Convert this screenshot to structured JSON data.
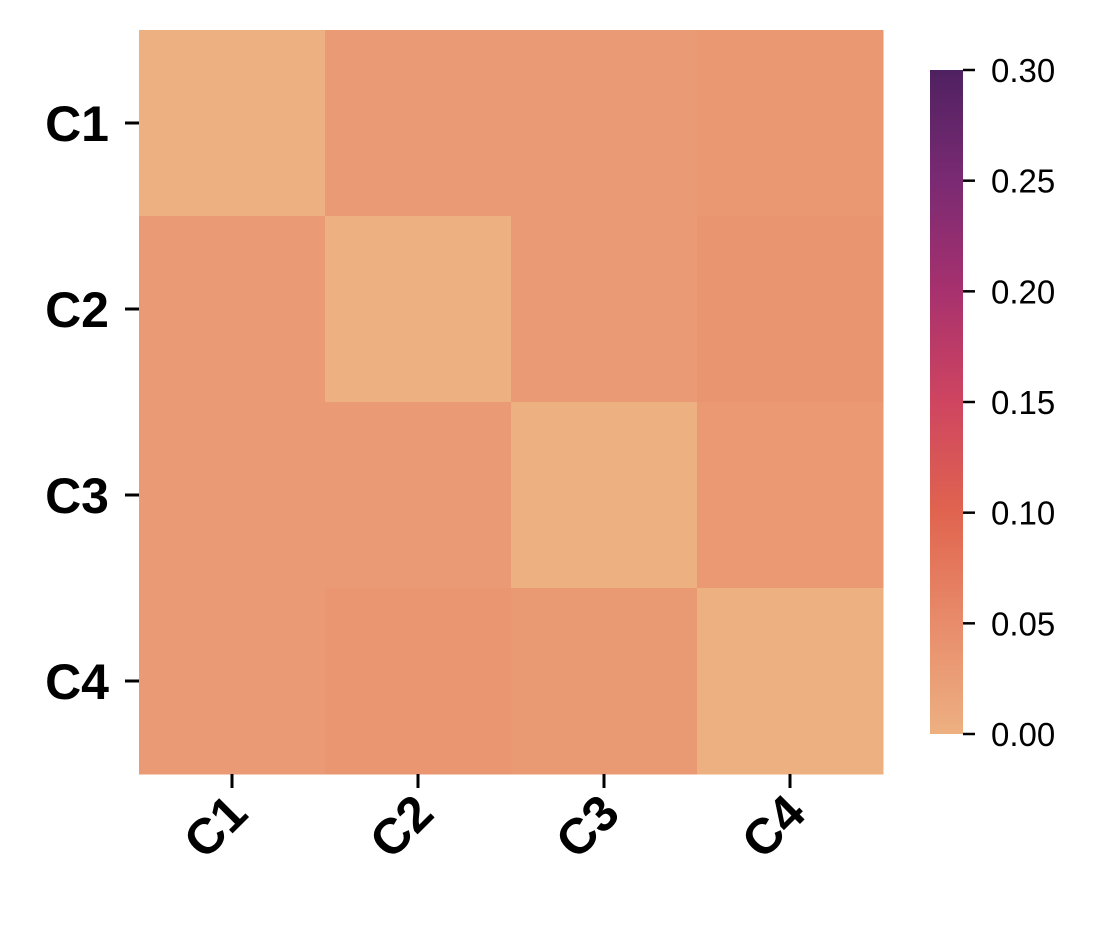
{
  "chart_data": {
    "type": "heatmap",
    "title": "",
    "xlabel": "",
    "ylabel": "",
    "x_categories": [
      "C1",
      "C2",
      "C3",
      "C4"
    ],
    "y_categories": [
      "C1",
      "C2",
      "C3",
      "C4"
    ],
    "values": [
      [
        0.0,
        0.03,
        0.03,
        0.033
      ],
      [
        0.03,
        0.0,
        0.03,
        0.038
      ],
      [
        0.03,
        0.03,
        0.0,
        0.032
      ],
      [
        0.03,
        0.036,
        0.031,
        0.0
      ]
    ],
    "colorbar": {
      "min": 0.0,
      "max": 0.3,
      "ticks": [
        0.0,
        0.05,
        0.1,
        0.15,
        0.2,
        0.25,
        0.3
      ],
      "tick_labels": [
        "0.00",
        "0.05",
        "0.10",
        "0.15",
        "0.20",
        "0.25",
        "0.30"
      ],
      "colormap": "flare",
      "stops": [
        "#edb081",
        "#e88c6b",
        "#e0644f",
        "#cf4560",
        "#a7316e",
        "#7a2a73",
        "#4f2160"
      ]
    },
    "grid": false,
    "legend": "right"
  }
}
